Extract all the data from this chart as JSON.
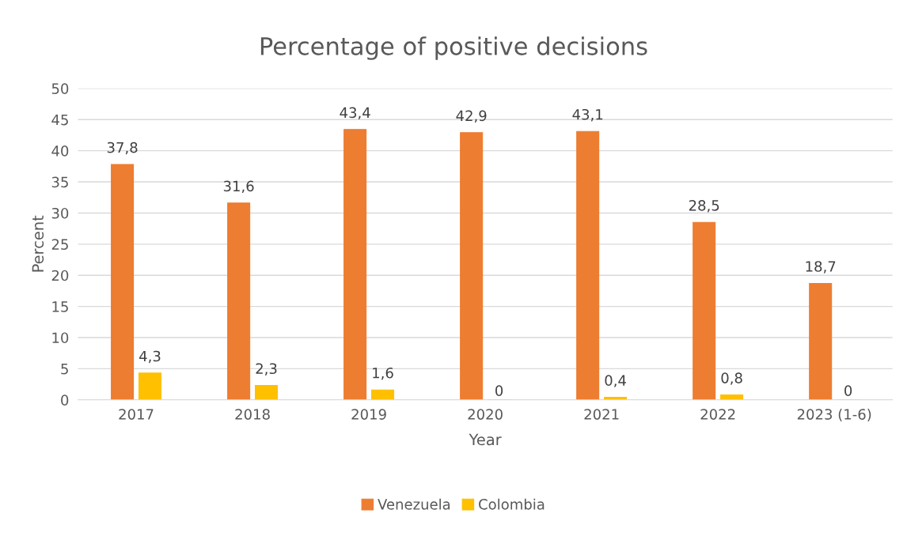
{
  "chart_data": {
    "type": "bar",
    "title": "Percentage of positive decisions",
    "xlabel": "Year",
    "ylabel": "Percent",
    "categories": [
      "2017",
      "2018",
      "2019",
      "2020",
      "2021",
      "2022",
      "2023 (1-6)"
    ],
    "series": [
      {
        "name": "Venezuela",
        "color": "#ed7d31",
        "values": [
          37.8,
          31.6,
          43.4,
          42.9,
          43.1,
          28.5,
          18.7
        ],
        "value_labels": [
          "37,8",
          "31,6",
          "43,4",
          "42,9",
          "43,1",
          "28,5",
          "18,7"
        ]
      },
      {
        "name": "Colombia",
        "color": "#ffc000",
        "values": [
          4.3,
          2.3,
          1.6,
          0,
          0.4,
          0.8,
          0
        ],
        "value_labels": [
          "4,3",
          "2,3",
          "1,6",
          "0",
          "0,4",
          "0,8",
          "0"
        ]
      }
    ],
    "ylim": [
      0,
      50
    ],
    "yticks": [
      0,
      5,
      10,
      15,
      20,
      25,
      30,
      35,
      40,
      45,
      50
    ],
    "grid": "y",
    "legend": "bottom"
  }
}
